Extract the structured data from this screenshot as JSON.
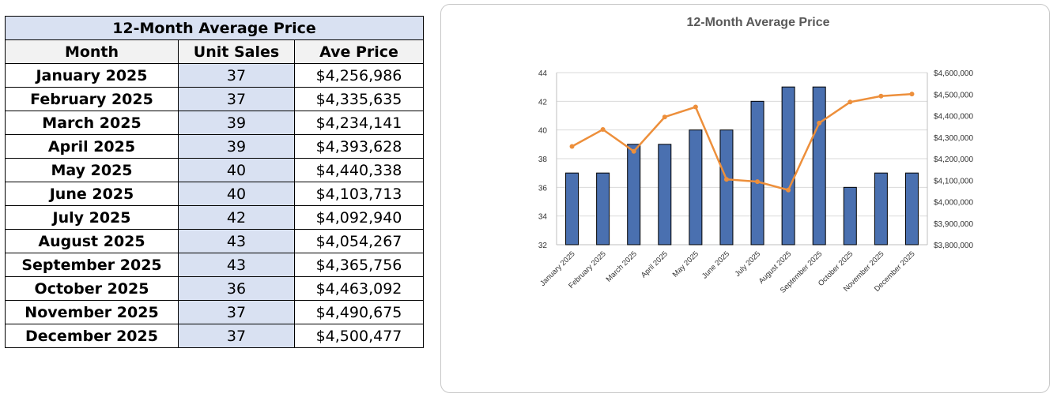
{
  "table": {
    "title": "12-Month Average Price",
    "headers": [
      "Month",
      "Unit Sales",
      "Ave Price"
    ],
    "rows": [
      [
        "January 2025",
        "37",
        "$4,256,986"
      ],
      [
        "February 2025",
        "37",
        "$4,335,635"
      ],
      [
        "March 2025",
        "39",
        "$4,234,141"
      ],
      [
        "April 2025",
        "39",
        "$4,393,628"
      ],
      [
        "May 2025",
        "40",
        "$4,440,338"
      ],
      [
        "June 2025",
        "40",
        "$4,103,713"
      ],
      [
        "July 2025",
        "42",
        "$4,092,940"
      ],
      [
        "August 2025",
        "43",
        "$4,054,267"
      ],
      [
        "September 2025",
        "43",
        "$4,365,756"
      ],
      [
        "October 2025",
        "36",
        "$4,463,092"
      ],
      [
        "November 2025",
        "37",
        "$4,490,675"
      ],
      [
        "December 2025",
        "37",
        "$4,500,477"
      ]
    ]
  },
  "chart_data": {
    "type": "bar",
    "title": "12-Month Average Price",
    "categories": [
      "January 2025",
      "February 2025",
      "March 2025",
      "April 2025",
      "May 2025",
      "June 2025",
      "July 2025",
      "August 2025",
      "September 2025",
      "October 2025",
      "November 2025",
      "December 2025"
    ],
    "series": [
      {
        "name": "Unit Sales",
        "type": "bar",
        "axis": "left",
        "color": "#4a70b0",
        "values": [
          37,
          37,
          39,
          39,
          40,
          40,
          42,
          43,
          43,
          36,
          37,
          37
        ]
      },
      {
        "name": "Ave Price",
        "type": "line",
        "axis": "right",
        "color": "#ed8f3b",
        "values": [
          4256986,
          4335635,
          4234141,
          4393628,
          4440338,
          4103713,
          4092940,
          4054267,
          4365756,
          4463092,
          4490675,
          4500477
        ]
      }
    ],
    "ylim": [
      32,
      44
    ],
    "yticks": [
      "32",
      "34",
      "36",
      "38",
      "40",
      "42",
      "44"
    ],
    "y2lim": [
      3800000,
      4600000
    ],
    "y2ticks": [
      "$3,800,000",
      "$3,900,000",
      "$4,000,000",
      "$4,100,000",
      "$4,200,000",
      "$4,300,000",
      "$4,400,000",
      "$4,500,000",
      "$4,600,000"
    ],
    "grid": true
  }
}
